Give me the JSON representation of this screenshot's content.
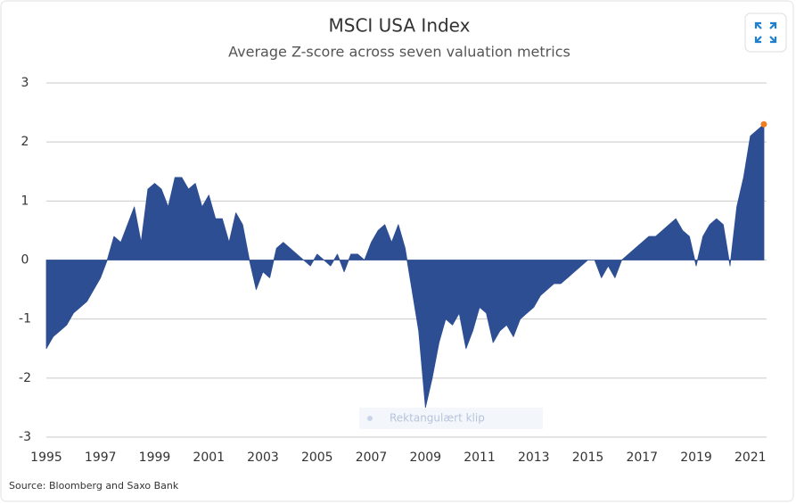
{
  "chart_data": {
    "type": "area",
    "title": "MSCI USA Index",
    "subtitle": "Average Z-score across seven valuation metrics",
    "source": "Source: Bloomberg and Saxo Bank",
    "overlay_text": "Rektangulært klip",
    "x": [
      1995,
      1995.25,
      1995.5,
      1995.75,
      1996,
      1996.25,
      1996.5,
      1996.75,
      1997,
      1997.25,
      1997.5,
      1997.75,
      1998,
      1998.25,
      1998.5,
      1998.75,
      1999,
      1999.25,
      1999.5,
      1999.75,
      2000,
      2000.25,
      2000.5,
      2000.75,
      2001,
      2001.25,
      2001.5,
      2001.75,
      2002,
      2002.25,
      2002.5,
      2002.75,
      2003,
      2003.25,
      2003.5,
      2003.75,
      2004,
      2004.25,
      2004.5,
      2004.75,
      2005,
      2005.25,
      2005.5,
      2005.75,
      2006,
      2006.25,
      2006.5,
      2006.75,
      2007,
      2007.25,
      2007.5,
      2007.75,
      2008,
      2008.25,
      2008.5,
      2008.75,
      2009,
      2009.25,
      2009.5,
      2009.75,
      2010,
      2010.25,
      2010.5,
      2010.75,
      2011,
      2011.25,
      2011.5,
      2011.75,
      2012,
      2012.25,
      2012.5,
      2012.75,
      2013,
      2013.25,
      2013.5,
      2013.75,
      2014,
      2014.25,
      2014.5,
      2014.75,
      2015,
      2015.25,
      2015.5,
      2015.75,
      2016,
      2016.25,
      2016.5,
      2016.75,
      2017,
      2017.25,
      2017.5,
      2017.75,
      2018,
      2018.25,
      2018.5,
      2018.75,
      2019,
      2019.25,
      2019.5,
      2019.75,
      2020,
      2020.25,
      2020.5,
      2020.75,
      2021,
      2021.25,
      2021.5
    ],
    "series": [
      {
        "color": "#2d4e93",
        "last_point_color": "#f07d22",
        "values": [
          -1.5,
          -1.3,
          -1.2,
          -1.1,
          -0.9,
          -0.8,
          -0.7,
          -0.5,
          -0.3,
          0.0,
          0.4,
          0.3,
          0.6,
          0.9,
          0.3,
          1.2,
          1.3,
          1.2,
          0.9,
          1.4,
          1.4,
          1.2,
          1.3,
          0.9,
          1.1,
          0.7,
          0.7,
          0.3,
          0.8,
          0.6,
          0.0,
          -0.5,
          -0.2,
          -0.3,
          0.2,
          0.3,
          0.2,
          0.1,
          0.0,
          -0.1,
          0.1,
          0.0,
          -0.1,
          0.1,
          -0.2,
          0.1,
          0.1,
          0.0,
          0.3,
          0.5,
          0.6,
          0.3,
          0.6,
          0.2,
          -0.5,
          -1.2,
          -2.5,
          -2.0,
          -1.4,
          -1.0,
          -1.1,
          -0.9,
          -1.5,
          -1.2,
          -0.8,
          -0.9,
          -1.4,
          -1.2,
          -1.1,
          -1.3,
          -1.0,
          -0.9,
          -0.8,
          -0.6,
          -0.5,
          -0.4,
          -0.4,
          -0.3,
          -0.2,
          -0.1,
          0.0,
          0.0,
          -0.3,
          -0.1,
          -0.3,
          0.0,
          0.1,
          0.2,
          0.3,
          0.4,
          0.4,
          0.5,
          0.6,
          0.7,
          0.5,
          0.4,
          -0.1,
          0.4,
          0.6,
          0.7,
          0.6,
          -0.1,
          0.9,
          1.4,
          2.1,
          2.2,
          2.3
        ]
      }
    ],
    "xlim": [
      1995,
      2021.6
    ],
    "xticks": [
      1995,
      1997,
      1999,
      2001,
      2003,
      2005,
      2007,
      2009,
      2011,
      2013,
      2015,
      2017,
      2019,
      2021
    ],
    "ylim": [
      -3,
      3
    ],
    "yticks": [
      -3,
      -2,
      -1,
      0,
      1,
      2,
      3
    ],
    "grid": true
  }
}
